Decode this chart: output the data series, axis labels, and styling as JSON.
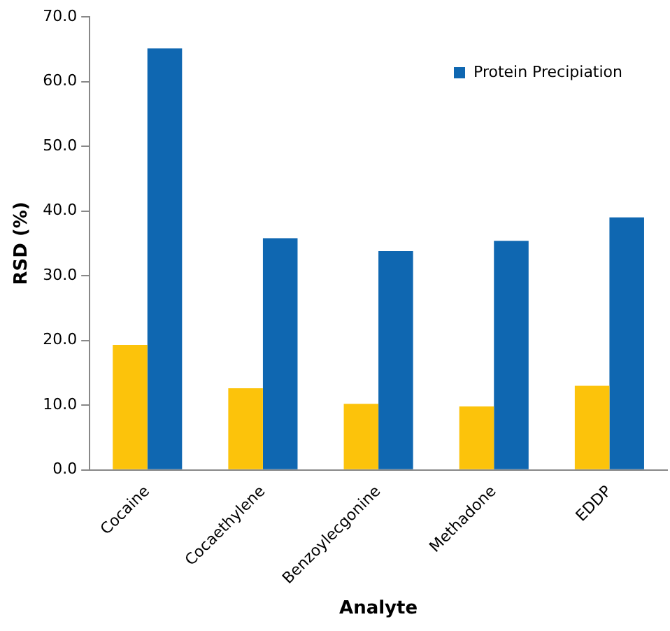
{
  "chart_data": {
    "type": "bar",
    "xlabel": "Analyte",
    "ylabel": "RSD (%)",
    "categories": [
      "Cocaine",
      "Cocaethylene",
      "Benzoylecgonine",
      "Methadone",
      "EDDP"
    ],
    "series": [
      {
        "color": "#fcc30b",
        "values": [
          19.3,
          12.6,
          10.2,
          9.8,
          13.0
        ]
      },
      {
        "name": "Protein Precipiation",
        "color": "#0f67b1",
        "values": [
          65.1,
          35.8,
          33.8,
          35.4,
          39.0
        ]
      }
    ],
    "ylim": [
      0,
      70
    ],
    "yticks": [
      {
        "value": 0,
        "label": "0.0"
      },
      {
        "value": 10,
        "label": "10.0"
      },
      {
        "value": 20,
        "label": "20.0"
      },
      {
        "value": 30,
        "label": "30.0"
      },
      {
        "value": 40,
        "label": "40.0"
      },
      {
        "value": 50,
        "label": "50.0"
      },
      {
        "value": 60,
        "label": "60.0"
      },
      {
        "value": 70,
        "label": "70.0"
      }
    ],
    "grid": false,
    "legend": "top right"
  }
}
